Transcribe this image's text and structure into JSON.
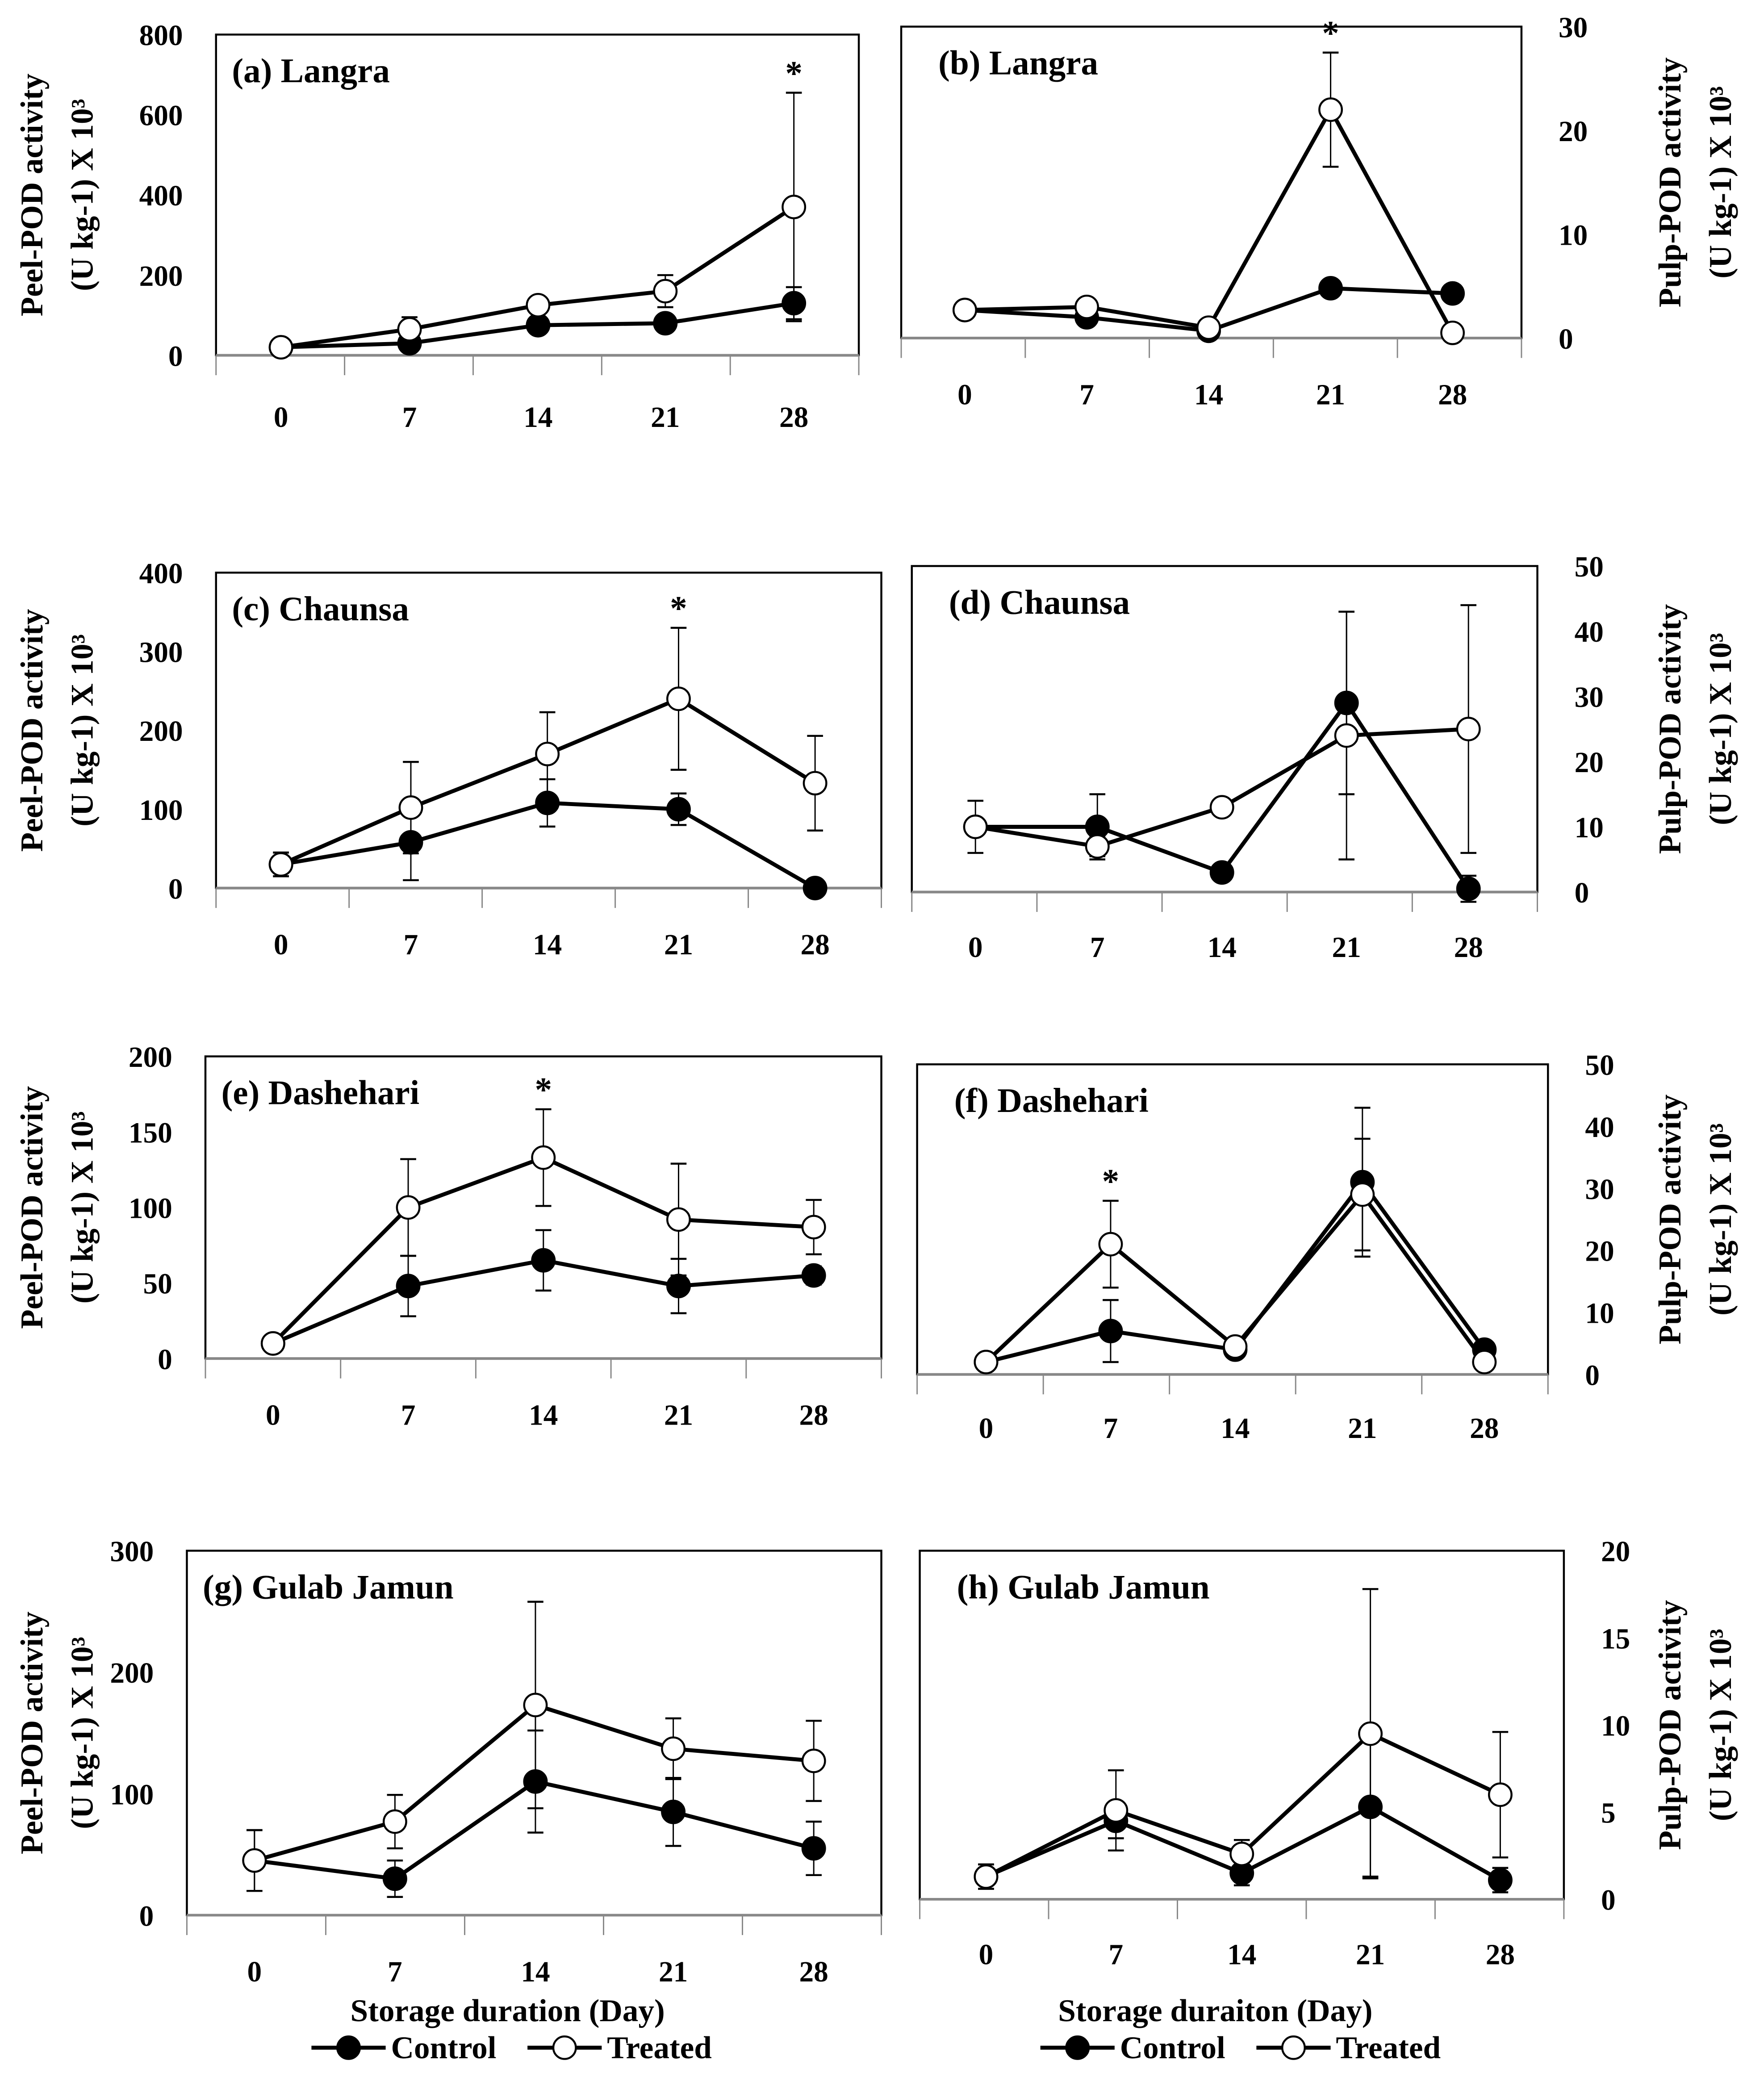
{
  "chart_data": [
    {
      "id": "a",
      "type": "line",
      "title": "(a) Langra",
      "ylabel": "Peel-POD activity",
      "ylabel2": "(U kg-1) X 10³",
      "ylim": [
        0,
        800
      ],
      "yticks": [
        0,
        200,
        400,
        600,
        800
      ],
      "axis": "left",
      "categories": [
        "0",
        "7",
        "14",
        "21",
        "28"
      ],
      "series": [
        {
          "name": "Control",
          "values": [
            20,
            30,
            75,
            80,
            130
          ],
          "errors": [
            0,
            10,
            10,
            15,
            40
          ]
        },
        {
          "name": "Treated",
          "values": [
            20,
            65,
            125,
            160,
            370
          ],
          "errors": [
            0,
            30,
            0,
            40,
            285
          ]
        }
      ],
      "annotations": [
        {
          "text": "*",
          "category": "28"
        }
      ]
    },
    {
      "id": "b",
      "type": "line",
      "title": "(b) Langra",
      "ylabel": "Pulp-POD activity",
      "ylabel2": "(U kg-1) X 10³",
      "ylim": [
        0,
        30
      ],
      "yticks": [
        0,
        10,
        20,
        30
      ],
      "axis": "right",
      "categories": [
        "0",
        "7",
        "14",
        "21",
        "28"
      ],
      "series": [
        {
          "name": "Control",
          "values": [
            2.7,
            2,
            0.7,
            4.8,
            4.3
          ],
          "errors": [
            0,
            0.4,
            0,
            0.8,
            0
          ]
        },
        {
          "name": "Treated",
          "values": [
            2.7,
            3,
            1,
            22,
            0.5
          ],
          "errors": [
            0,
            0.6,
            0,
            5.5,
            0
          ]
        }
      ],
      "annotations": [
        {
          "text": "*",
          "category": "21"
        }
      ]
    },
    {
      "id": "c",
      "type": "line",
      "title": "(c) Chaunsa",
      "ylabel": "Peel-POD activity",
      "ylabel2": "(U kg-1) X 10³",
      "ylim": [
        0,
        400
      ],
      "yticks": [
        0,
        100,
        200,
        300,
        400
      ],
      "axis": "left",
      "categories": [
        "0",
        "7",
        "14",
        "21",
        "28"
      ],
      "series": [
        {
          "name": "Control",
          "values": [
            30,
            58,
            108,
            100,
            0
          ],
          "errors": [
            15,
            48,
            30,
            20,
            0
          ]
        },
        {
          "name": "Treated",
          "values": [
            30,
            102,
            170,
            240,
            133
          ],
          "errors": [
            15,
            58,
            53,
            90,
            60
          ]
        }
      ],
      "annotations": [
        {
          "text": "*",
          "category": "21"
        }
      ]
    },
    {
      "id": "d",
      "type": "line",
      "title": "(d) Chaunsa",
      "ylabel": "Pulp-POD activity",
      "ylabel2": "(U kg-1) X 10³",
      "ylim": [
        0,
        50
      ],
      "yticks": [
        0,
        10,
        20,
        30,
        40,
        50
      ],
      "axis": "right",
      "categories": [
        "0",
        "7",
        "14",
        "21",
        "28"
      ],
      "series": [
        {
          "name": "Control",
          "values": [
            10,
            10,
            3,
            29,
            0.5
          ],
          "errors": [
            0,
            5,
            0,
            14,
            2
          ]
        },
        {
          "name": "Treated",
          "values": [
            10,
            7,
            13,
            24,
            25
          ],
          "errors": [
            4,
            1.5,
            0,
            19,
            19
          ]
        }
      ],
      "annotations": []
    },
    {
      "id": "e",
      "type": "line",
      "title": "(e) Dashehari",
      "ylabel": "Peel-POD activity",
      "ylabel2": "(U kg-1) X 10³",
      "ylim": [
        0,
        200
      ],
      "yticks": [
        0,
        50,
        100,
        150,
        200
      ],
      "axis": "left",
      "categories": [
        "0",
        "7",
        "14",
        "21",
        "28"
      ],
      "series": [
        {
          "name": "Control",
          "values": [
            10,
            48,
            65,
            48,
            55
          ],
          "errors": [
            0,
            20,
            20,
            18,
            6
          ]
        },
        {
          "name": "Treated",
          "values": [
            10,
            100,
            133,
            92,
            87
          ],
          "errors": [
            0,
            32,
            32,
            37,
            18
          ]
        }
      ],
      "annotations": [
        {
          "text": "*",
          "category": "14"
        }
      ]
    },
    {
      "id": "f",
      "type": "line",
      "title": "(f) Dashehari",
      "ylabel": "Pulp-POD activity",
      "ylabel2": "(U kg-1) X 10³",
      "ylim": [
        0,
        50
      ],
      "yticks": [
        0,
        10,
        20,
        30,
        40,
        50
      ],
      "axis": "right",
      "categories": [
        "0",
        "7",
        "14",
        "21",
        "28"
      ],
      "series": [
        {
          "name": "Control",
          "values": [
            2,
            7,
            4,
            31,
            4
          ],
          "errors": [
            0,
            5,
            0,
            12,
            1
          ]
        },
        {
          "name": "Treated",
          "values": [
            2,
            21,
            4.5,
            29,
            2
          ],
          "errors": [
            0,
            7,
            0,
            9,
            0
          ]
        }
      ],
      "annotations": [
        {
          "text": "*",
          "category": "7"
        }
      ]
    },
    {
      "id": "g",
      "type": "line",
      "title": "(g) Gulab Jamun",
      "ylabel": "Peel-POD activity",
      "ylabel2": "(U kg-1) X 10³",
      "ylim": [
        0,
        300
      ],
      "yticks": [
        0,
        100,
        200,
        300
      ],
      "axis": "left",
      "categories": [
        "0",
        "7",
        "14",
        "21",
        "28"
      ],
      "xlabel": "Storage duration (Day)",
      "series": [
        {
          "name": "Control",
          "values": [
            45,
            30,
            110,
            85,
            55
          ],
          "errors": [
            25,
            15,
            42,
            28,
            22
          ]
        },
        {
          "name": "Treated",
          "values": [
            45,
            77,
            173,
            137,
            127
          ],
          "errors": [
            25,
            22,
            85,
            25,
            33
          ]
        }
      ],
      "annotations": []
    },
    {
      "id": "h",
      "type": "line",
      "title": "(h) Gulab Jamun",
      "ylabel": "Pulp-POD activity",
      "ylabel2": "(U kg-1) X 10³",
      "ylim": [
        0,
        20
      ],
      "yticks": [
        0,
        5,
        10,
        15,
        20
      ],
      "axis": "right",
      "categories": [
        "0",
        "7",
        "14",
        "21",
        "28"
      ],
      "xlabel": "Storage duraiton (Day)",
      "series": [
        {
          "name": "Control",
          "values": [
            1.3,
            4.5,
            1.5,
            5.3,
            1.1
          ],
          "errors": [
            0.7,
            1,
            0.7,
            4,
            0.7
          ]
        },
        {
          "name": "Treated",
          "values": [
            1.3,
            5.1,
            2.6,
            9.5,
            6
          ],
          "errors": [
            0.7,
            2.3,
            0.8,
            8.3,
            3.6
          ]
        }
      ],
      "annotations": []
    }
  ],
  "legend": {
    "items": [
      "Control",
      "Treated"
    ],
    "placement": "bottom"
  }
}
